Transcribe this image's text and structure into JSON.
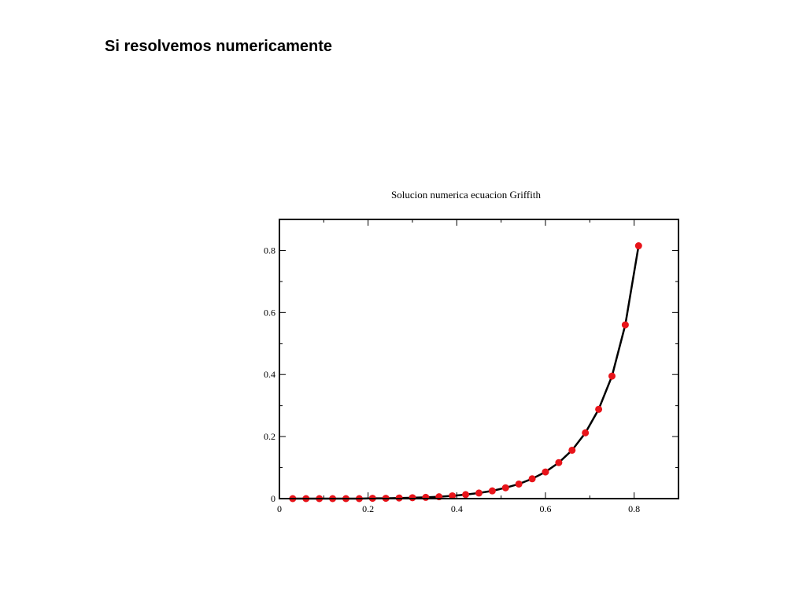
{
  "slide": {
    "title": "Si resolvemos numericamente"
  },
  "chart_data": {
    "type": "line",
    "title": "Solucion numerica ecuacion Griffith",
    "xlabel": "",
    "ylabel": "",
    "xlim": [
      0,
      0.9
    ],
    "ylim": [
      0,
      0.9
    ],
    "x_ticks": [
      0,
      0.2,
      0.4,
      0.6,
      0.8
    ],
    "x_tick_labels": [
      "0",
      "0.2",
      "0.4",
      "0.6",
      "0.8"
    ],
    "y_ticks": [
      0,
      0.2,
      0.4,
      0.6,
      0.8
    ],
    "y_tick_labels": [
      "0",
      "0.2",
      "0.4",
      "0.6",
      "0.8"
    ],
    "grid": false,
    "legend": "none",
    "series": [
      {
        "line_color": "#000000",
        "marker_color": "#e8141a",
        "marker": "circle",
        "x": [
          0.03,
          0.06,
          0.09,
          0.12,
          0.15,
          0.18,
          0.21,
          0.24,
          0.27,
          0.3,
          0.33,
          0.36,
          0.39,
          0.42,
          0.45,
          0.48,
          0.51,
          0.54,
          0.57,
          0.6,
          0.63,
          0.66,
          0.69,
          0.72,
          0.75,
          0.78,
          0.81
        ],
        "y": [
          0.0,
          0.0,
          0.0,
          0.0,
          0.0,
          0.0,
          0.001,
          0.001,
          0.002,
          0.003,
          0.004,
          0.006,
          0.009,
          0.013,
          0.018,
          0.025,
          0.035,
          0.047,
          0.064,
          0.086,
          0.116,
          0.156,
          0.212,
          0.288,
          0.395,
          0.56,
          0.815
        ]
      }
    ]
  }
}
